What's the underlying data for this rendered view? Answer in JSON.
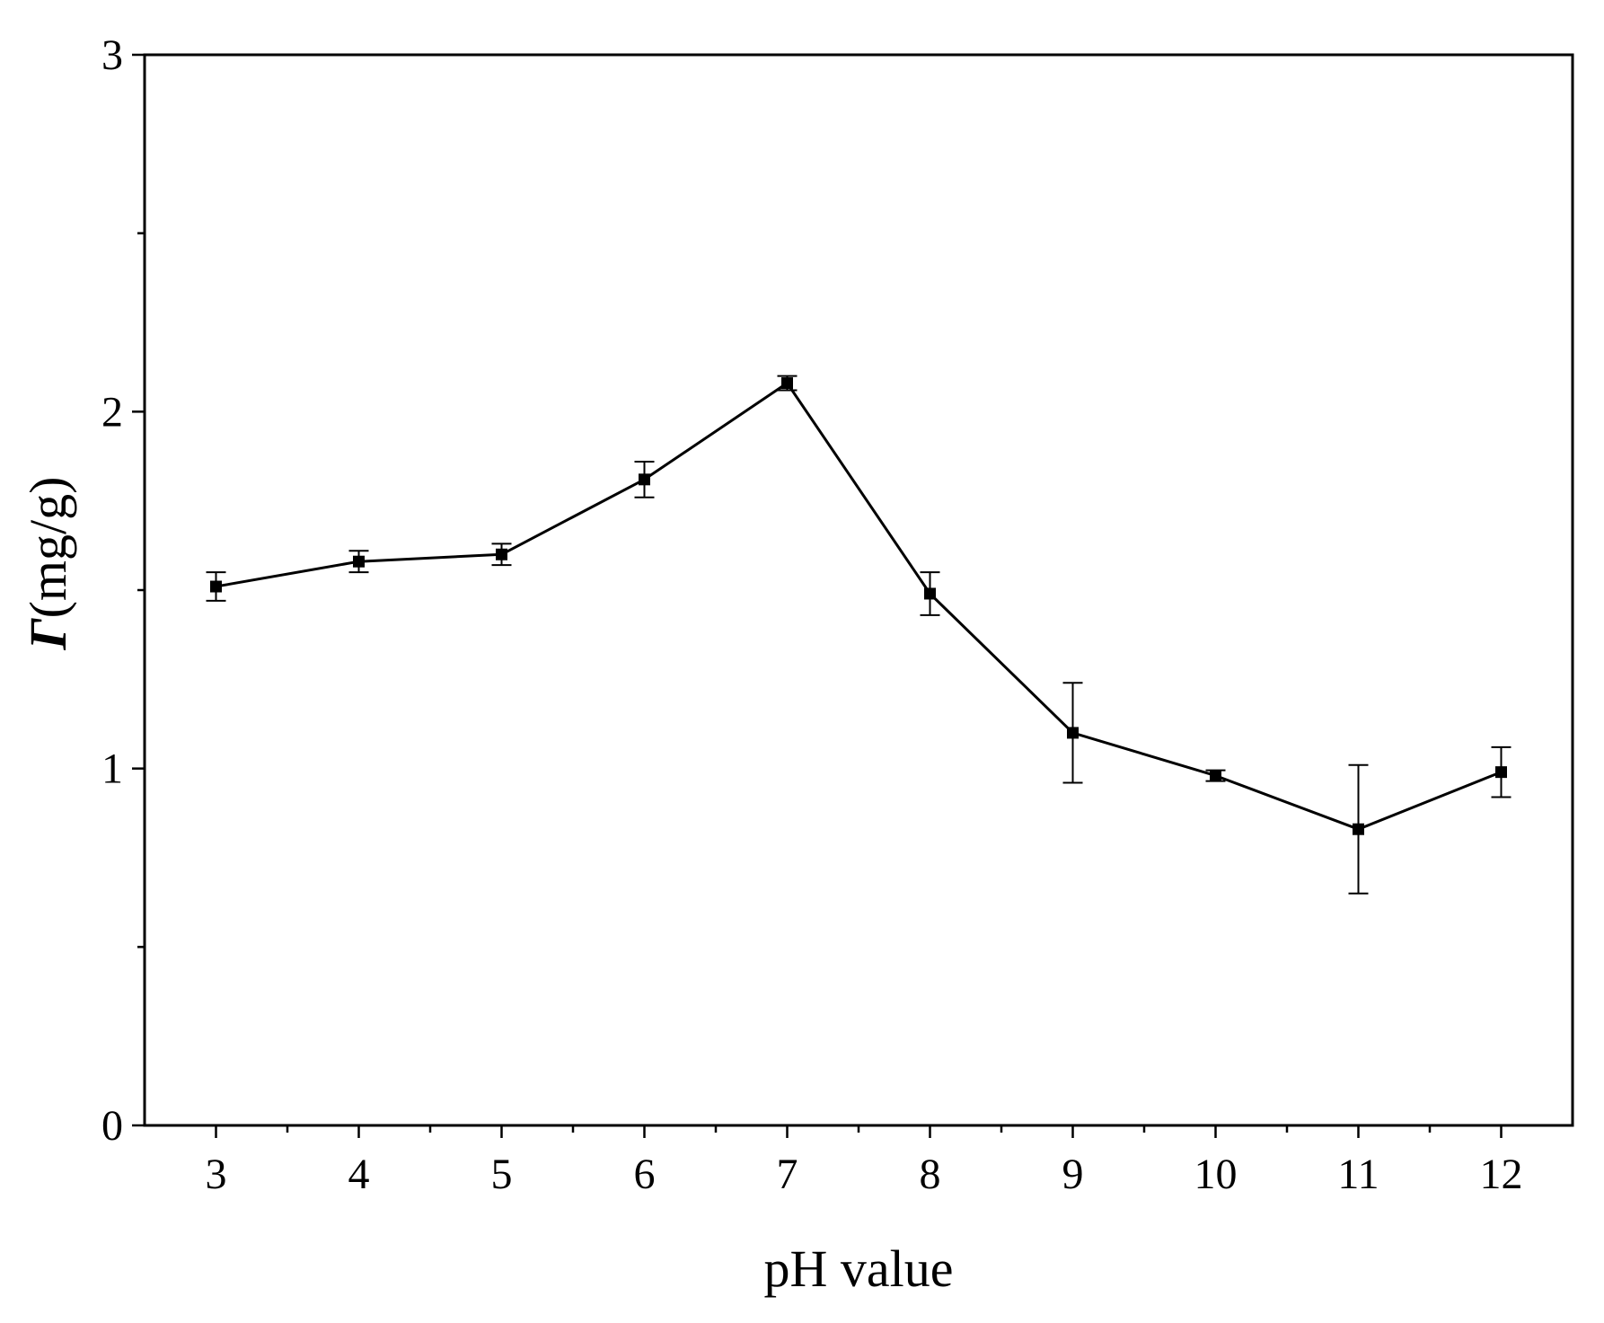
{
  "chart_data": {
    "type": "line",
    "title": "",
    "xlabel": "pH value",
    "ylabel_symbol": "Γ",
    "ylabel_unit": "(mg/g)",
    "xlim": [
      2.5,
      12.5
    ],
    "ylim": [
      0,
      3
    ],
    "xticks": [
      3,
      4,
      5,
      6,
      7,
      8,
      9,
      10,
      11,
      12
    ],
    "yticks": [
      0,
      1,
      2,
      3
    ],
    "yminor": [
      0.5,
      1.5,
      2.5
    ],
    "xminor": [
      3.5,
      4.5,
      5.5,
      6.5,
      7.5,
      8.5,
      9.5,
      10.5,
      11.5
    ],
    "grid": false,
    "series": [
      {
        "marker": "square",
        "color": "#000000",
        "x": [
          3,
          4,
          5,
          6,
          7,
          8,
          9,
          10,
          11,
          12
        ],
        "y": [
          1.51,
          1.58,
          1.6,
          1.81,
          2.08,
          1.49,
          1.1,
          0.98,
          0.83,
          0.99
        ],
        "err": [
          0.04,
          0.03,
          0.03,
          0.05,
          0.02,
          0.06,
          0.14,
          0.015,
          0.18,
          0.07
        ]
      }
    ]
  },
  "colors": {
    "axis": "#000000",
    "series": "#000000",
    "background": "#ffffff"
  }
}
